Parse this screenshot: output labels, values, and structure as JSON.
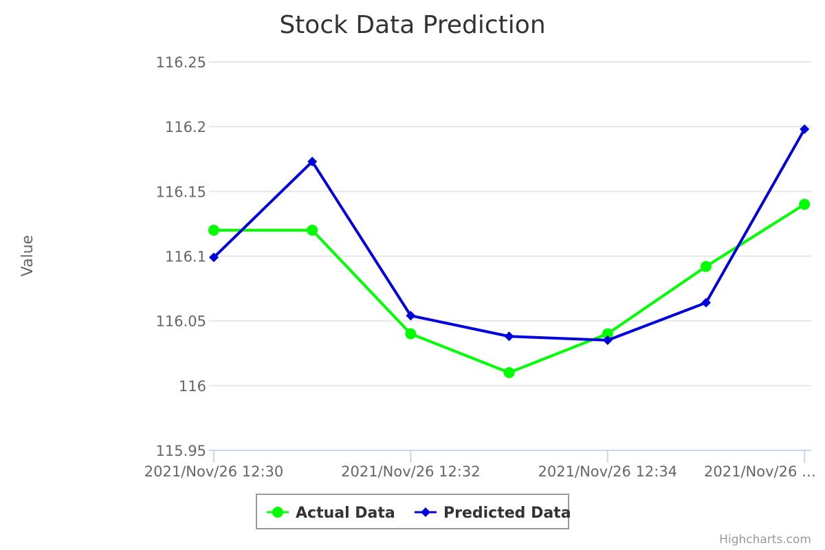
{
  "chart_data": {
    "type": "line",
    "title": "Stock Data Prediction",
    "ylabel": "Value",
    "xlabel": "",
    "ylim": [
      115.95,
      116.25
    ],
    "yticks": [
      "115.95",
      "116",
      "116.05",
      "116.1",
      "116.15",
      "116.2",
      "116.25"
    ],
    "xtick_labels": [
      "2021/Nov/26 12:30",
      "2021/Nov/26 12:32",
      "2021/Nov/26 12:34",
      "2021/Nov/26 …"
    ],
    "xtick_positions": [
      0,
      2,
      4,
      6
    ],
    "grid": true,
    "legend_position": "bottom-center",
    "series": [
      {
        "name": "Actual Data",
        "color": "#00ff00",
        "marker": "circle",
        "values": [
          116.12,
          116.12,
          116.04,
          116.01,
          116.04,
          116.092,
          116.14
        ]
      },
      {
        "name": "Predicted Data",
        "color": "#0000dd",
        "marker": "diamond",
        "values": [
          116.099,
          116.173,
          116.054,
          116.038,
          116.035,
          116.064,
          116.198
        ]
      }
    ]
  },
  "credits": "Highcharts.com"
}
